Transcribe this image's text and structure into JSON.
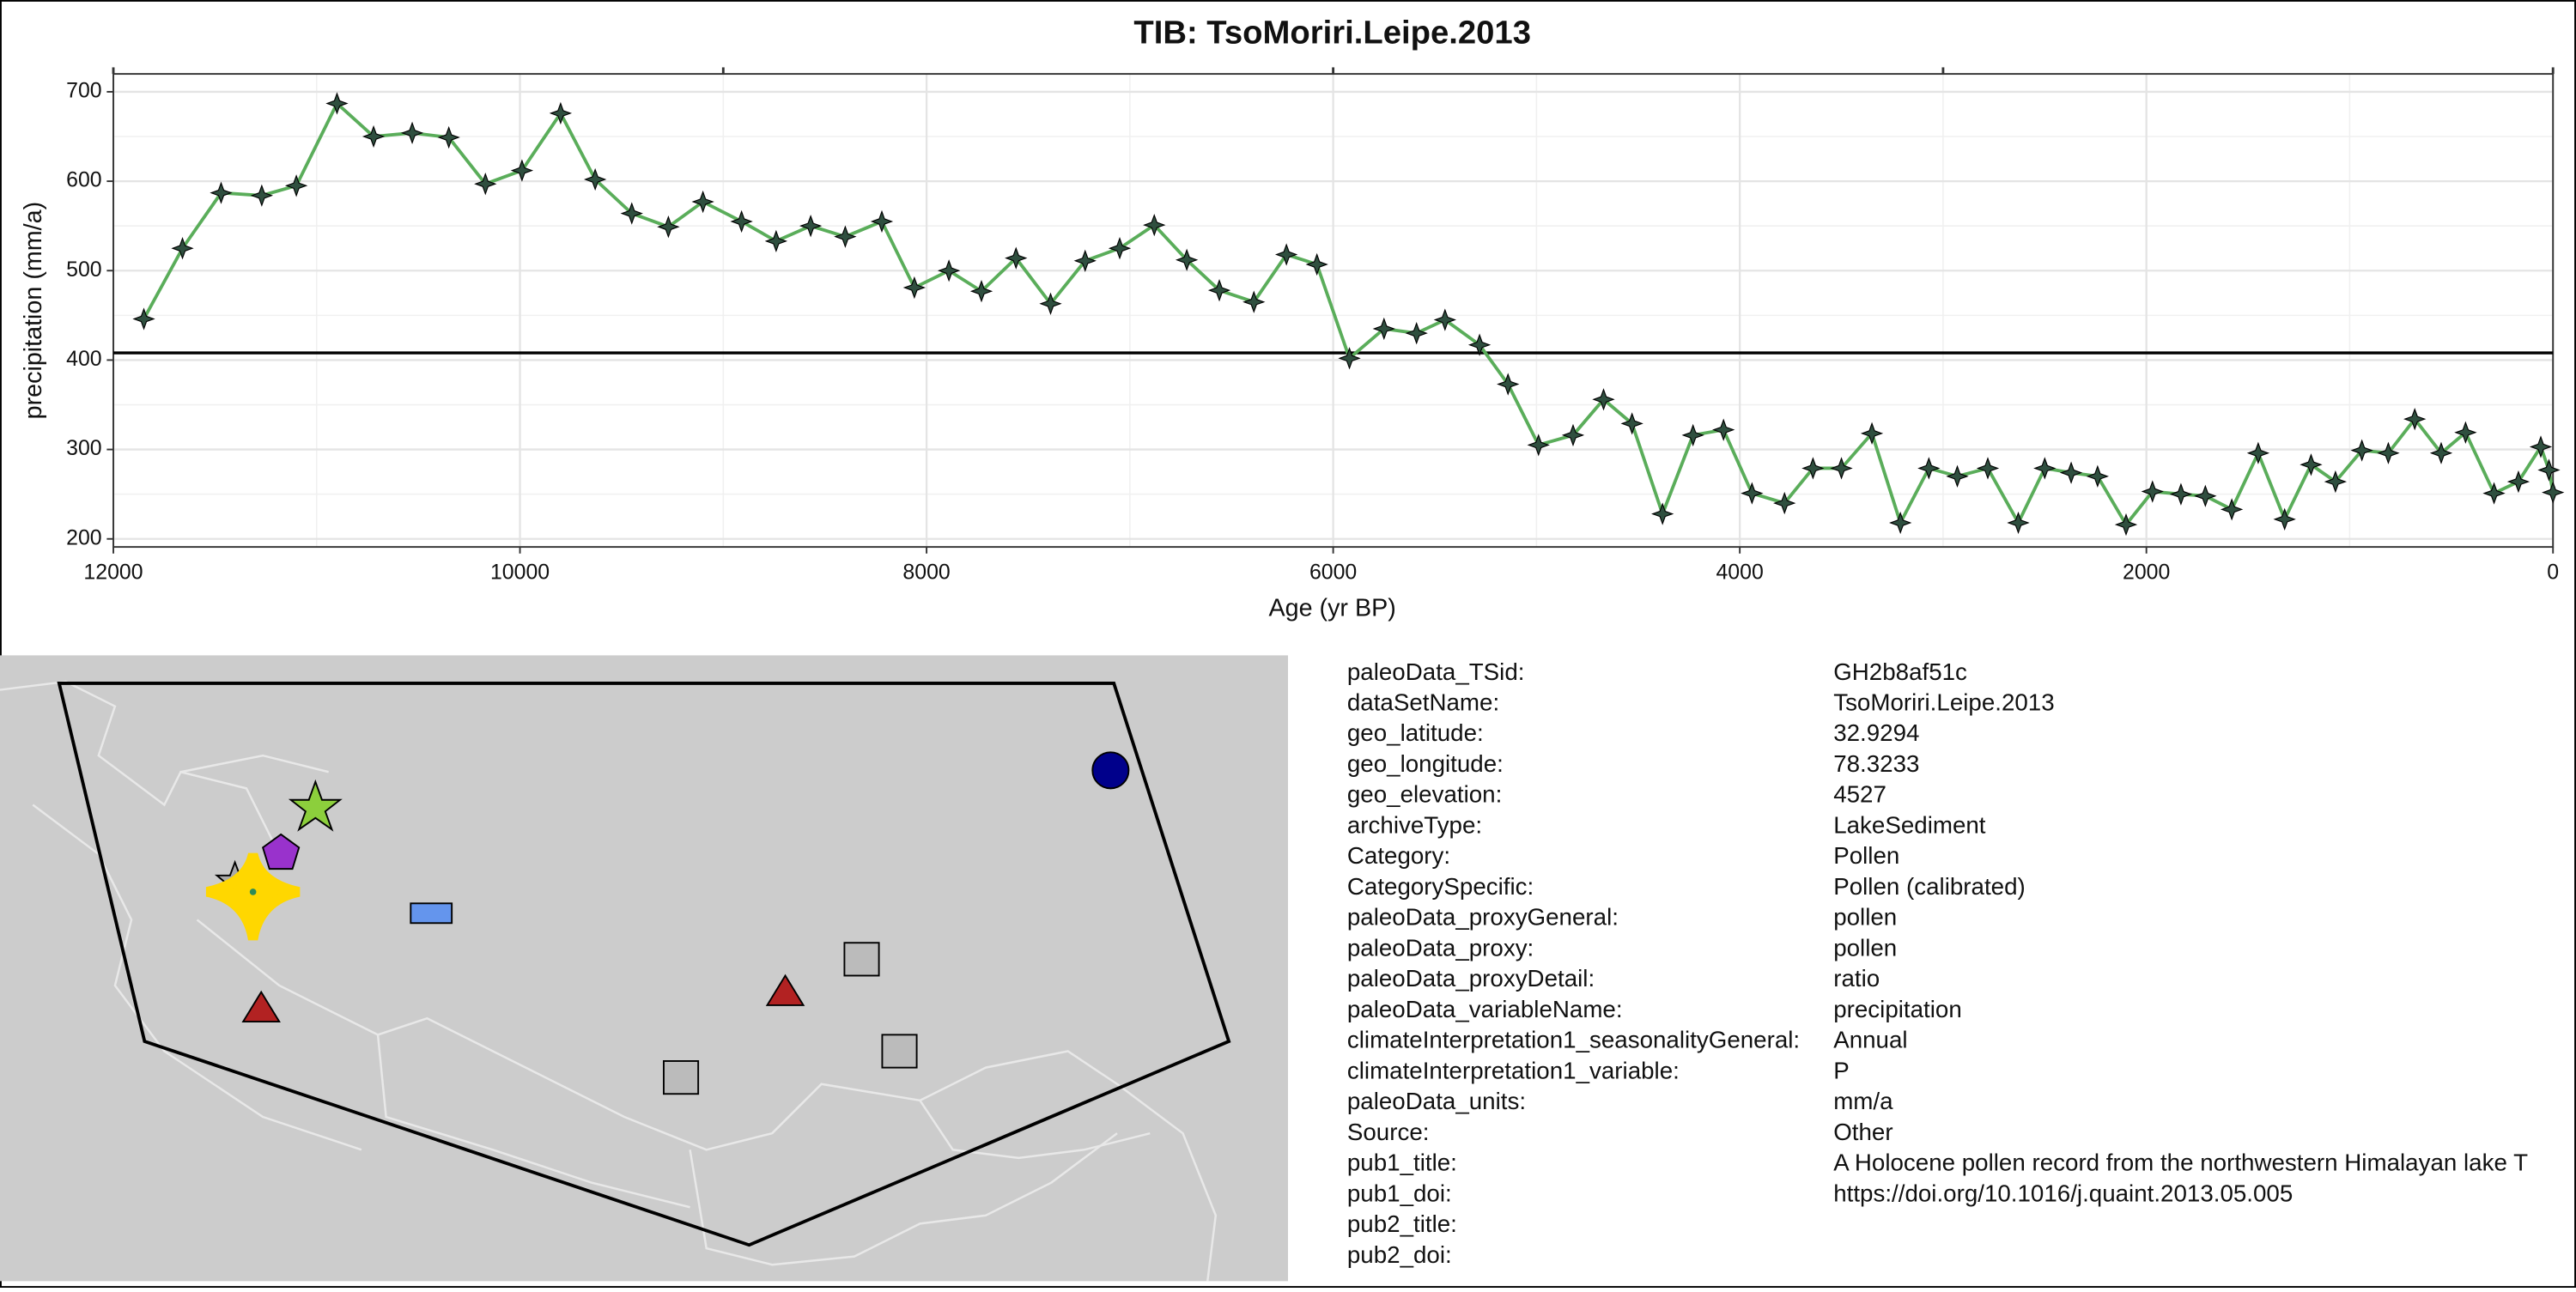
{
  "chart_data": {
    "type": "line",
    "title": "TIB: TsoMoriri.Leipe.2013",
    "x_label": "Age (yr BP)",
    "y_label": "precipitation (mm/a)",
    "x": [
      11850,
      11660,
      11470,
      11270,
      11100,
      10900,
      10720,
      10530,
      10350,
      10170,
      9990,
      9800,
      9630,
      9450,
      9270,
      9100,
      8910,
      8740,
      8570,
      8400,
      8220,
      8060,
      7890,
      7730,
      7560,
      7390,
      7220,
      7050,
      6880,
      6720,
      6560,
      6390,
      6230,
      6080,
      5920,
      5750,
      5590,
      5450,
      5280,
      5140,
      4990,
      4820,
      4670,
      4530,
      4380,
      4230,
      4080,
      3940,
      3780,
      3640,
      3500,
      3350,
      3210,
      3070,
      2930,
      2780,
      2630,
      2500,
      2370,
      2240,
      2100,
      1970,
      1830,
      1710,
      1580,
      1450,
      1320,
      1190,
      1070,
      940,
      810,
      680,
      550,
      430,
      290,
      170,
      60,
      20,
      0
    ],
    "values": [
      446,
      525,
      587,
      584,
      595,
      687,
      650,
      654,
      649,
      597,
      612,
      676,
      602,
      564,
      549,
      577,
      555,
      533,
      550,
      538,
      555,
      481,
      500,
      477,
      514,
      463,
      511,
      525,
      551,
      512,
      478,
      465,
      518,
      507,
      402,
      435,
      430,
      445,
      417,
      373,
      305,
      316,
      356,
      329,
      228,
      316,
      322,
      251,
      240,
      279,
      279,
      318,
      218,
      279,
      270,
      279,
      218,
      279,
      274,
      270,
      216,
      253,
      250,
      248,
      233,
      296,
      222,
      283,
      264,
      299,
      296,
      334,
      296,
      319,
      251,
      264,
      303,
      277,
      252
    ],
    "color": "#5aad5a",
    "hline": 408,
    "xlim": [
      12000,
      0
    ],
    "ylim": [
      191,
      720
    ],
    "xticks": [
      12000,
      10000,
      8000,
      6000,
      4000,
      2000,
      0
    ],
    "x2ticks": [
      12000,
      9000,
      6000,
      3000,
      0
    ],
    "yticks": [
      200,
      300,
      400,
      500,
      600,
      700
    ],
    "grid": true
  },
  "metadata": {
    "rows": [
      [
        "paleoData_TSid:",
        "GH2b8af51c"
      ],
      [
        "dataSetName:",
        "TsoMoriri.Leipe.2013"
      ],
      [
        "geo_latitude:",
        "32.9294"
      ],
      [
        "geo_longitude:",
        "78.3233"
      ],
      [
        "geo_elevation:",
        "4527"
      ],
      [
        "archiveType:",
        "LakeSediment"
      ],
      [
        "Category:",
        "Pollen"
      ],
      [
        "CategorySpecific:",
        "Pollen (calibrated)"
      ],
      [
        "paleoData_proxyGeneral:",
        "pollen"
      ],
      [
        "paleoData_proxy:",
        "pollen"
      ],
      [
        "paleoData_proxyDetail:",
        "ratio"
      ],
      [
        "paleoData_variableName:",
        "precipitation"
      ],
      [
        "climateInterpretation1_seasonalityGeneral:",
        "Annual"
      ],
      [
        "climateInterpretation1_variable:",
        "P"
      ],
      [
        "paleoData_units:",
        "mm/a"
      ],
      [
        "Source:",
        "Other"
      ],
      [
        "pub1_title:",
        "A Holocene pollen record from the northwestern Himalayan lake T"
      ],
      [
        "pub1_doi:",
        "https://doi.org/10.1016/j.quaint.2013.05.005"
      ],
      [
        "pub2_title:",
        ""
      ],
      [
        "pub2_doi:",
        ""
      ]
    ]
  }
}
